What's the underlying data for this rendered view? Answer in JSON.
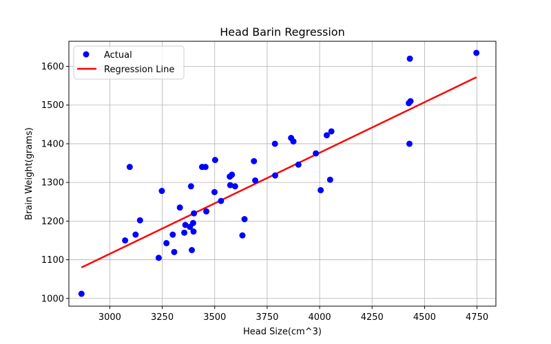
{
  "chart_data": {
    "type": "scatter",
    "title": "Head Barin Regression",
    "xlabel": "Head Size(cm^3)",
    "ylabel": "Brain Weight(grams)",
    "xlim": [
      2805,
      4840
    ],
    "ylim": [
      980,
      1665
    ],
    "xticks": [
      3000,
      3250,
      3500,
      3750,
      4000,
      4250,
      4500,
      4750
    ],
    "yticks": [
      1000,
      1100,
      1200,
      1300,
      1400,
      1500,
      1600
    ],
    "grid": true,
    "legend_position": "top-left",
    "series": [
      {
        "name": "Actual",
        "kind": "scatter",
        "color": "#0000ff",
        "points": [
          [
            2865,
            1012
          ],
          [
            3073,
            1150
          ],
          [
            3095,
            1340
          ],
          [
            3123,
            1165
          ],
          [
            3144,
            1202
          ],
          [
            3233,
            1105
          ],
          [
            3248,
            1278
          ],
          [
            3270,
            1143
          ],
          [
            3300,
            1165
          ],
          [
            3307,
            1120
          ],
          [
            3334,
            1235
          ],
          [
            3355,
            1170
          ],
          [
            3360,
            1190
          ],
          [
            3382,
            1185
          ],
          [
            3387,
            1290
          ],
          [
            3391,
            1125
          ],
          [
            3397,
            1195
          ],
          [
            3399,
            1173
          ],
          [
            3401,
            1220
          ],
          [
            3440,
            1340
          ],
          [
            3456,
            1340
          ],
          [
            3460,
            1225
          ],
          [
            3499,
            1275
          ],
          [
            3502,
            1358
          ],
          [
            3530,
            1252
          ],
          [
            3632,
            1163
          ],
          [
            3642,
            1205
          ],
          [
            3572,
            1315
          ],
          [
            3574,
            1293
          ],
          [
            3582,
            1320
          ],
          [
            3597,
            1290
          ],
          [
            3687,
            1355
          ],
          [
            3693,
            1305
          ],
          [
            3787,
            1400
          ],
          [
            3788,
            1318
          ],
          [
            3864,
            1415
          ],
          [
            3875,
            1406
          ],
          [
            3899,
            1346
          ],
          [
            3982,
            1375
          ],
          [
            4005,
            1280
          ],
          [
            4034,
            1422
          ],
          [
            4050,
            1307
          ],
          [
            4056,
            1432
          ],
          [
            4425,
            1505
          ],
          [
            4428,
            1400
          ],
          [
            4430,
            1620
          ],
          [
            4433,
            1510
          ],
          [
            4747,
            1635
          ]
        ]
      },
      {
        "name": "Regression Line",
        "kind": "line",
        "color": "#ff0000",
        "points": [
          [
            2865,
            1080
          ],
          [
            4747,
            1572
          ]
        ]
      }
    ]
  }
}
